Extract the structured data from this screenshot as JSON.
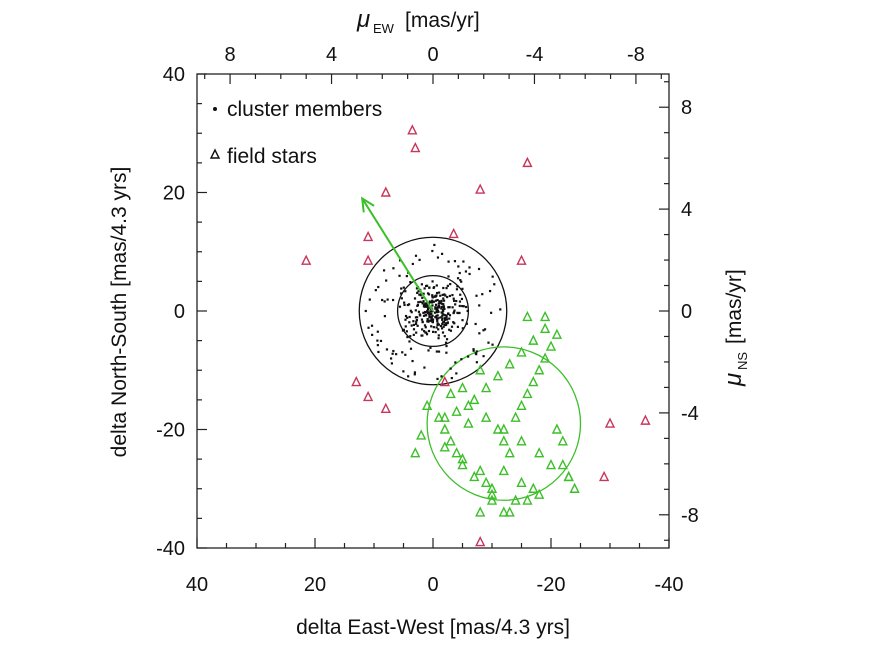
{
  "colors": {
    "cluster": "#111111",
    "field": "#c8365a",
    "group": "#3dbf2a",
    "circle_cluster": "#111111",
    "circle_group": "#3dbf2a",
    "arrow": "#3dbf2a"
  },
  "chart_data": {
    "type": "scatter",
    "xlabel": "delta East-West [mas/4.3 yrs]",
    "ylabel": "delta North-South [mas/4.3 yrs]",
    "top_xlabel_symbol": "μ",
    "top_xlabel_sub": "EW",
    "top_xlabel_unit": "[mas/yr]",
    "right_ylabel_symbol": "μ",
    "right_ylabel_sub": "NS",
    "right_ylabel_unit": "[mas/yr]",
    "xlim": [
      40,
      -40
    ],
    "ylim": [
      -40,
      40
    ],
    "x_ticks": [
      40,
      20,
      0,
      -20,
      -40
    ],
    "x_tick_labels": [
      "40",
      "20",
      "0",
      "-20",
      "-40"
    ],
    "y_ticks": [
      40,
      20,
      0,
      -20,
      -40
    ],
    "y_tick_labels": [
      "40",
      "20",
      "0",
      "-20",
      "-40"
    ],
    "top_ticks": [
      8,
      4,
      0,
      -4,
      -8
    ],
    "top_tick_labels": [
      "8",
      "4",
      "0",
      "-4",
      "-8"
    ],
    "right_ticks": [
      8,
      4,
      0,
      -4,
      -8
    ],
    "right_tick_labels": [
      "8",
      "4",
      "0",
      "-4",
      "-8"
    ],
    "secondary_scale_mas_yr_per_unit": 0.2326,
    "legend": {
      "position": "top-left",
      "entries": [
        {
          "marker": "dot",
          "label": "cluster members"
        },
        {
          "marker": "triangle",
          "label": "field stars"
        }
      ]
    },
    "circles": [
      {
        "name": "cluster-inner-circle",
        "cx": 0,
        "cy": 0,
        "r": 6,
        "color": "#111111"
      },
      {
        "name": "cluster-outer-circle",
        "cx": 0,
        "cy": 0,
        "r": 12.5,
        "color": "#111111"
      },
      {
        "name": "green-group-circle",
        "cx": -12,
        "cy": -19,
        "r": 13,
        "color": "#3dbf2a"
      }
    ],
    "arrow": {
      "from": [
        0,
        0
      ],
      "to": [
        12,
        19
      ],
      "color": "#3dbf2a"
    },
    "cluster_cloud": {
      "center": [
        0,
        0
      ],
      "count": 380,
      "core_sigma": 2.2,
      "halo_radius": 12.5,
      "seed": 7
    },
    "series": [
      {
        "name": "field stars (red)",
        "marker": "triangle",
        "color": "#c8365a",
        "x": [
          21.5,
          11,
          8,
          11,
          3,
          3.5,
          -3.5,
          -8,
          -16,
          -15,
          -2,
          13,
          11,
          8,
          -30,
          -29,
          -36,
          -8
        ],
        "y": [
          8.5,
          8.5,
          20,
          12.5,
          27.5,
          30.5,
          13,
          20.5,
          25,
          8.5,
          -12,
          -12,
          -14.5,
          -16.5,
          -19,
          -28,
          -18.5,
          -39
        ]
      },
      {
        "name": "field stars (green)",
        "marker": "triangle",
        "color": "#3dbf2a",
        "x": [
          -3,
          -6,
          -9,
          -12,
          -15,
          -18,
          -20,
          -23,
          -17,
          -16,
          -13,
          -10,
          -7,
          -5,
          -4,
          -3,
          -2,
          -1,
          1,
          2,
          -2,
          -5,
          -8,
          -9,
          -10,
          -11,
          -12,
          -13,
          -14,
          -15,
          -16,
          -17,
          -18,
          -19,
          -20,
          -21,
          -22,
          -23,
          -24,
          -14,
          -12,
          -10,
          -8,
          -6,
          -4,
          -7,
          -9,
          -11,
          -13,
          -15,
          -17,
          -19,
          -21,
          -22,
          -12,
          -15,
          -18,
          -8,
          -5,
          -2,
          3,
          -16,
          -19
        ],
        "y": [
          -14,
          -16,
          -18,
          -20,
          -22,
          -24,
          -26,
          -28,
          -30,
          -32,
          -34,
          -30,
          -28,
          -26,
          -24,
          -22,
          -20,
          -18,
          -16,
          -21,
          -23,
          -25,
          -27,
          -29,
          -31,
          -20,
          -22,
          -24,
          -18,
          -16,
          -14,
          -12,
          -10,
          -8,
          -6,
          -4,
          -26,
          -28,
          -30,
          -32,
          -34,
          -32,
          -34,
          -19,
          -17,
          -15,
          -13,
          -11,
          -9,
          -7,
          -5,
          -3,
          -20,
          -22,
          -27,
          -29,
          -31,
          -10,
          -13,
          -18,
          -24,
          -1,
          -1
        ]
      }
    ]
  }
}
